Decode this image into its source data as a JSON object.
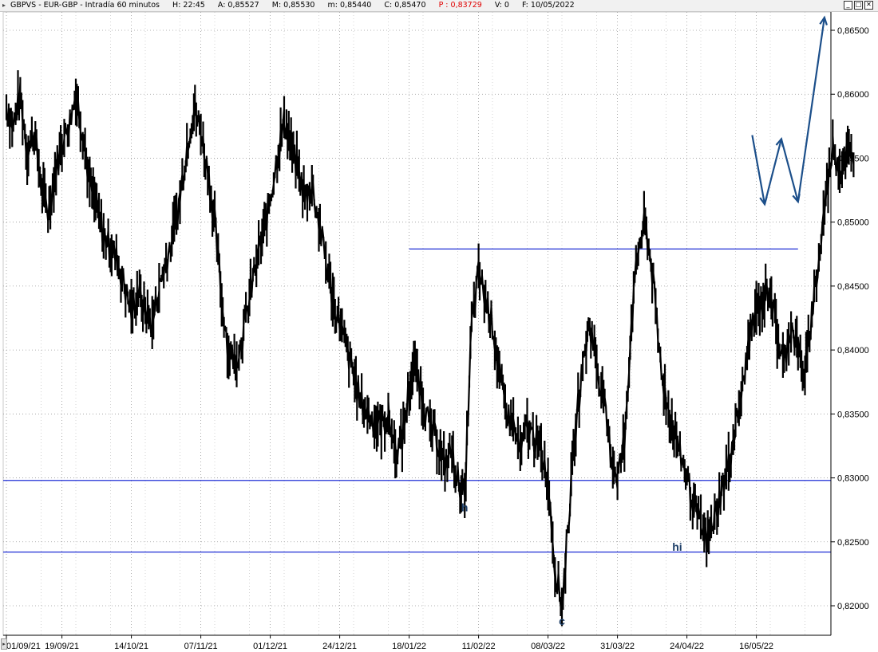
{
  "window": {
    "arrow_glyph": "▸",
    "symbol": "GBPVS - EUR-GBP - Intradía 60 minutos",
    "H": "H: 22:45",
    "A": "A: 0,85527",
    "M": "M: 0,85530",
    "m": "m: 0,85440",
    "C": "C: 0,85470",
    "P": "P : 0,83729",
    "V": "V: 0",
    "F": "F: 10/05/2022",
    "controls": [
      "_",
      "□",
      "✕"
    ]
  },
  "chart_data": {
    "type": "line",
    "title": "GBPVS - EUR-GBP - Intradía 60 minutos",
    "y_axis": {
      "min": 0.8185,
      "max": 0.8675,
      "ticks": [
        "0,86500",
        "0,86000",
        "0,85500",
        "0,85000",
        "0,84500",
        "0,84000",
        "0,83500",
        "0,83000",
        "0,82500",
        "0,82000"
      ],
      "tick_values": [
        0.865,
        0.86,
        0.855,
        0.85,
        0.845,
        0.84,
        0.835,
        0.83,
        0.825,
        0.82
      ]
    },
    "x_axis": {
      "ticks": [
        "01/09/21",
        "19/09/21",
        "14/10/21",
        "07/11/21",
        "01/12/21",
        "24/12/21",
        "18/01/22",
        "11/02/22",
        "08/03/22",
        "31/03/22",
        "24/04/22",
        "16/05/22"
      ],
      "tick_index": [
        0,
        4,
        9,
        14,
        19,
        24,
        29,
        34,
        39,
        44,
        49,
        54
      ],
      "n_slots": 60
    },
    "grid": true,
    "series": [
      {
        "values": [
          [
            0,
            0.859
          ],
          [
            0.5,
            0.8575
          ],
          [
            1,
            0.86
          ],
          [
            1.5,
            0.8555
          ],
          [
            2,
            0.857
          ],
          [
            2.5,
            0.853
          ],
          [
            3,
            0.8505
          ],
          [
            3.5,
            0.854
          ],
          [
            4,
            0.856
          ],
          [
            4.5,
            0.8575
          ],
          [
            5,
            0.86
          ],
          [
            5.5,
            0.857
          ],
          [
            6,
            0.853
          ],
          [
            6.5,
            0.851
          ],
          [
            7,
            0.849
          ],
          [
            7.5,
            0.848
          ],
          [
            8,
            0.847
          ],
          [
            8.5,
            0.845
          ],
          [
            9,
            0.843
          ],
          [
            9.5,
            0.8445
          ],
          [
            10,
            0.843
          ],
          [
            10.5,
            0.842
          ],
          [
            11,
            0.845
          ],
          [
            11.5,
            0.847
          ],
          [
            12,
            0.849
          ],
          [
            12.5,
            0.852
          ],
          [
            13,
            0.856
          ],
          [
            13.5,
            0.859
          ],
          [
            14,
            0.857
          ],
          [
            14.5,
            0.854
          ],
          [
            15,
            0.85
          ],
          [
            15.5,
            0.844
          ],
          [
            16,
            0.84
          ],
          [
            16.5,
            0.839
          ],
          [
            17,
            0.841
          ],
          [
            17.5,
            0.844
          ],
          [
            18,
            0.847
          ],
          [
            18.5,
            0.849
          ],
          [
            19,
            0.852
          ],
          [
            19.5,
            0.855
          ],
          [
            20,
            0.858
          ],
          [
            20.5,
            0.856
          ],
          [
            21,
            0.854
          ],
          [
            21.5,
            0.852
          ],
          [
            22,
            0.853
          ],
          [
            22.5,
            0.85
          ],
          [
            23,
            0.847
          ],
          [
            23.5,
            0.844
          ],
          [
            24,
            0.842
          ],
          [
            24.5,
            0.84
          ],
          [
            25,
            0.838
          ],
          [
            25.5,
            0.836
          ],
          [
            26,
            0.835
          ],
          [
            26.5,
            0.8345
          ],
          [
            27,
            0.834
          ],
          [
            27.5,
            0.835
          ],
          [
            28,
            0.832
          ],
          [
            28.5,
            0.833
          ],
          [
            29,
            0.837
          ],
          [
            29.5,
            0.839
          ],
          [
            30,
            0.836
          ],
          [
            30.5,
            0.834
          ],
          [
            31,
            0.833
          ],
          [
            31.5,
            0.831
          ],
          [
            32,
            0.832
          ],
          [
            32.5,
            0.83
          ],
          [
            33,
            0.8285
          ],
          [
            33.5,
            0.842
          ],
          [
            34,
            0.846
          ],
          [
            34.5,
            0.844
          ],
          [
            35,
            0.842
          ],
          [
            35.5,
            0.838
          ],
          [
            36,
            0.835
          ],
          [
            36.5,
            0.834
          ],
          [
            37,
            0.832
          ],
          [
            37.5,
            0.834
          ],
          [
            38,
            0.833
          ],
          [
            38.5,
            0.832
          ],
          [
            39,
            0.83
          ],
          [
            39.5,
            0.823
          ],
          [
            40,
            0.82
          ],
          [
            40.5,
            0.827
          ],
          [
            41,
            0.834
          ],
          [
            41.5,
            0.839
          ],
          [
            42,
            0.842
          ],
          [
            42.5,
            0.839
          ],
          [
            43,
            0.836
          ],
          [
            43.5,
            0.832
          ],
          [
            44,
            0.83
          ],
          [
            44.5,
            0.833
          ],
          [
            45,
            0.842
          ],
          [
            45.5,
            0.848
          ],
          [
            46,
            0.85
          ],
          [
            46.5,
            0.846
          ],
          [
            47,
            0.84
          ],
          [
            47.5,
            0.836
          ],
          [
            48,
            0.834
          ],
          [
            48.5,
            0.832
          ],
          [
            49,
            0.83
          ],
          [
            49.5,
            0.828
          ],
          [
            50,
            0.826
          ],
          [
            50.5,
            0.825
          ],
          [
            51,
            0.827
          ],
          [
            51.5,
            0.829
          ],
          [
            52,
            0.831
          ],
          [
            52.5,
            0.834
          ],
          [
            53,
            0.837
          ],
          [
            53.5,
            0.841
          ],
          [
            54,
            0.843
          ],
          [
            54.5,
            0.844
          ],
          [
            55,
            0.845
          ],
          [
            55.5,
            0.841
          ],
          [
            56,
            0.839
          ],
          [
            56.5,
            0.842
          ],
          [
            57,
            0.84
          ],
          [
            57.5,
            0.838
          ],
          [
            58,
            0.843
          ],
          [
            58.5,
            0.847
          ],
          [
            59,
            0.852
          ],
          [
            59.5,
            0.856
          ],
          [
            60,
            0.854
          ],
          [
            60.5,
            0.8555
          ],
          [
            61,
            0.8547
          ]
        ]
      }
    ],
    "horizontal_lines": [
      {
        "y": 0.8298,
        "x_from": 0,
        "x_to": 61
      },
      {
        "y": 0.8242,
        "x_from": 0,
        "x_to": 61
      },
      {
        "y": 0.8479,
        "x_from": 29,
        "x_to": 57
      }
    ],
    "projection_arrow": [
      [
        53.7,
        0.8568
      ],
      [
        54.6,
        0.8514
      ],
      [
        55.8,
        0.8565
      ],
      [
        57,
        0.8516
      ],
      [
        58.9,
        0.866
      ]
    ],
    "annotations": [
      {
        "text": "h",
        "x": 33,
        "y": 0.8274
      },
      {
        "text": "c",
        "x": 40,
        "y": 0.8185
      },
      {
        "text": "hi",
        "x": 48.3,
        "y": 0.8243
      }
    ]
  }
}
